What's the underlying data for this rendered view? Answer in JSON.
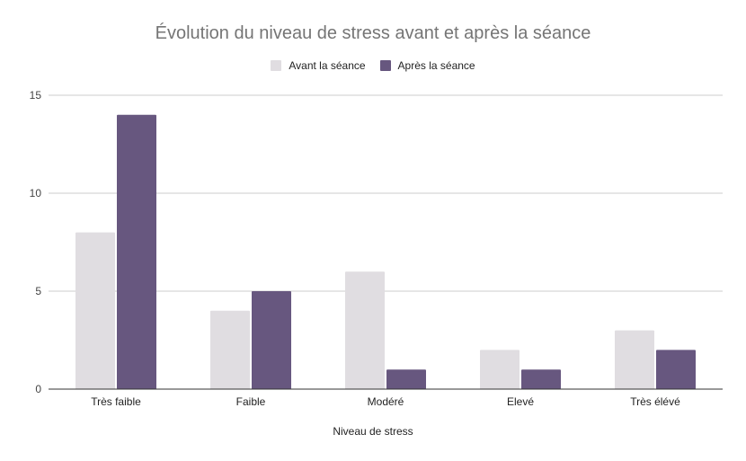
{
  "chart_data": {
    "type": "bar",
    "title": "Évolution du niveau de stress avant et après la séance",
    "xlabel": "Niveau de stress",
    "ylabel": "",
    "categories": [
      "Très faible",
      "Faible",
      "Modéré",
      "Elevé",
      "Très élévé"
    ],
    "series": [
      {
        "name": "Avant la séance",
        "values": [
          8,
          4,
          6,
          2,
          3
        ],
        "color": "#e0dde1"
      },
      {
        "name": "Après la séance",
        "values": [
          14,
          5,
          1,
          1,
          2
        ],
        "color": "#67577f"
      }
    ],
    "ylim": [
      0,
      15
    ],
    "yticks": [
      0,
      5,
      10,
      15
    ],
    "grid": true,
    "legend_position": "top"
  }
}
